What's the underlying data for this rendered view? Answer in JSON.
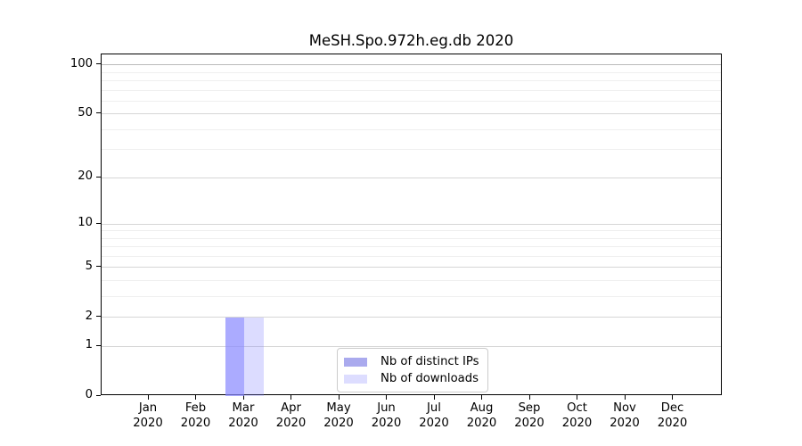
{
  "chart_data": {
    "type": "bar",
    "title": "MeSH.Spo.972h.eg.db 2020",
    "categories": [
      "Jan 2020",
      "Feb 2020",
      "Mar 2020",
      "Apr 2020",
      "May 2020",
      "Jun 2020",
      "Jul 2020",
      "Aug 2020",
      "Sep 2020",
      "Oct 2020",
      "Nov 2020",
      "Dec 2020"
    ],
    "series": [
      {
        "name": "Nb of distinct IPs",
        "color": "#aaaaee",
        "fill": "rgba(136,136,255,0.71)",
        "values": [
          0,
          0,
          2,
          0,
          0,
          0,
          0,
          0,
          0,
          0,
          0,
          0
        ]
      },
      {
        "name": "Nb of downloads",
        "color": "#ddddff",
        "fill": "rgba(136,136,255,0.29)",
        "values": [
          0,
          0,
          2,
          0,
          0,
          0,
          0,
          0,
          0,
          0,
          0,
          0
        ]
      }
    ],
    "y_axis": {
      "scale": "log1p",
      "ticks": [
        0,
        1,
        2,
        5,
        10,
        20,
        50,
        100
      ],
      "minor_gridlines": [
        3,
        4,
        6,
        7,
        8,
        9,
        30,
        40,
        60,
        70,
        80,
        90
      ],
      "max": 116
    },
    "x_axis": {
      "tick_years": "2020"
    },
    "grid": {
      "minor_color": "#efefef",
      "major_color": "#d6d6d6",
      "line_100_color": "#bbbbbb"
    },
    "legend_position": "lower center"
  }
}
